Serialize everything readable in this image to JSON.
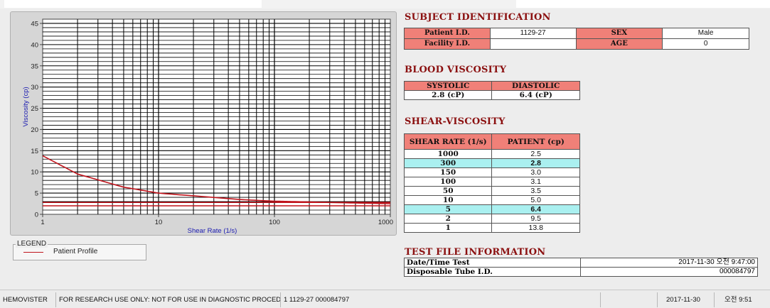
{
  "chart_data": {
    "type": "line",
    "xlabel": "Shear Rate (1/s)",
    "ylabel": "Viscosity (cp)",
    "xscale": "log",
    "xlim": [
      1,
      1000
    ],
    "ylim": [
      0,
      46
    ],
    "x_ticks": [
      "1",
      "10",
      "100",
      "1000"
    ],
    "y_ticks": [
      "0",
      "5",
      "10",
      "15",
      "20",
      "25",
      "30",
      "35",
      "40",
      "45"
    ],
    "grid": true,
    "series": [
      {
        "name": "Patient Profile",
        "color": "#c0141c",
        "x": [
          1,
          2,
          5,
          10,
          50,
          100,
          150,
          300,
          1000
        ],
        "y": [
          13.8,
          9.5,
          6.4,
          5.0,
          3.5,
          3.1,
          3.0,
          2.8,
          2.5
        ]
      }
    ],
    "reference_lines": [
      {
        "y": 2.8,
        "color": "#c0141c"
      },
      {
        "y": 2.0,
        "color": "#c0141c"
      }
    ]
  },
  "legend": {
    "title": "LEGEND",
    "items": [
      {
        "label": "Patient Profile",
        "color": "#c0141c"
      }
    ]
  },
  "subject": {
    "title": "SUBJECT IDENTIFICATION",
    "patient_id_label": "Patient I.D.",
    "patient_id": "1129-27",
    "sex_label": "SEX",
    "sex": "Male",
    "facility_id_label": "Facility I.D.",
    "facility_id": "",
    "age_label": "AGE",
    "age": "0"
  },
  "blood_viscosity": {
    "title": "BLOOD VISCOSITY",
    "systolic_label": "SYSTOLIC",
    "diastolic_label": "DIASTOLIC",
    "systolic": "2.8 (cP)",
    "diastolic": "6.4 (cP)"
  },
  "shear_viscosity": {
    "title": "SHEAR-VISCOSITY",
    "col_rate": "SHEAR RATE (1/s)",
    "col_patient": "PATIENT (cp)",
    "rows": [
      {
        "rate": "1000",
        "value": "2.5",
        "highlight": false
      },
      {
        "rate": "300",
        "value": "2.8",
        "highlight": true
      },
      {
        "rate": "150",
        "value": "3.0",
        "highlight": false
      },
      {
        "rate": "100",
        "value": "3.1",
        "highlight": false
      },
      {
        "rate": "50",
        "value": "3.5",
        "highlight": false
      },
      {
        "rate": "10",
        "value": "5.0",
        "highlight": false
      },
      {
        "rate": "5",
        "value": "6.4",
        "highlight": true
      },
      {
        "rate": "2",
        "value": "9.5",
        "highlight": false
      },
      {
        "rate": "1",
        "value": "13.8",
        "highlight": false
      }
    ]
  },
  "test_file": {
    "title": "TEST FILE INFORMATION",
    "datetime_label": "Date/Time Test",
    "datetime": "2017-11-30   오전 9:47:00",
    "tube_label": "Disposable Tube I.D.",
    "tube": "000084797"
  },
  "status_bar": {
    "app": "HEMOVISTER",
    "notice": "FOR RESEARCH USE ONLY: NOT FOR USE IN DIAGNOSTIC PROCEDURES",
    "record": "1  1129-27  000084797",
    "blank": "",
    "date": "2017-11-30",
    "time": "오전 9:51"
  }
}
